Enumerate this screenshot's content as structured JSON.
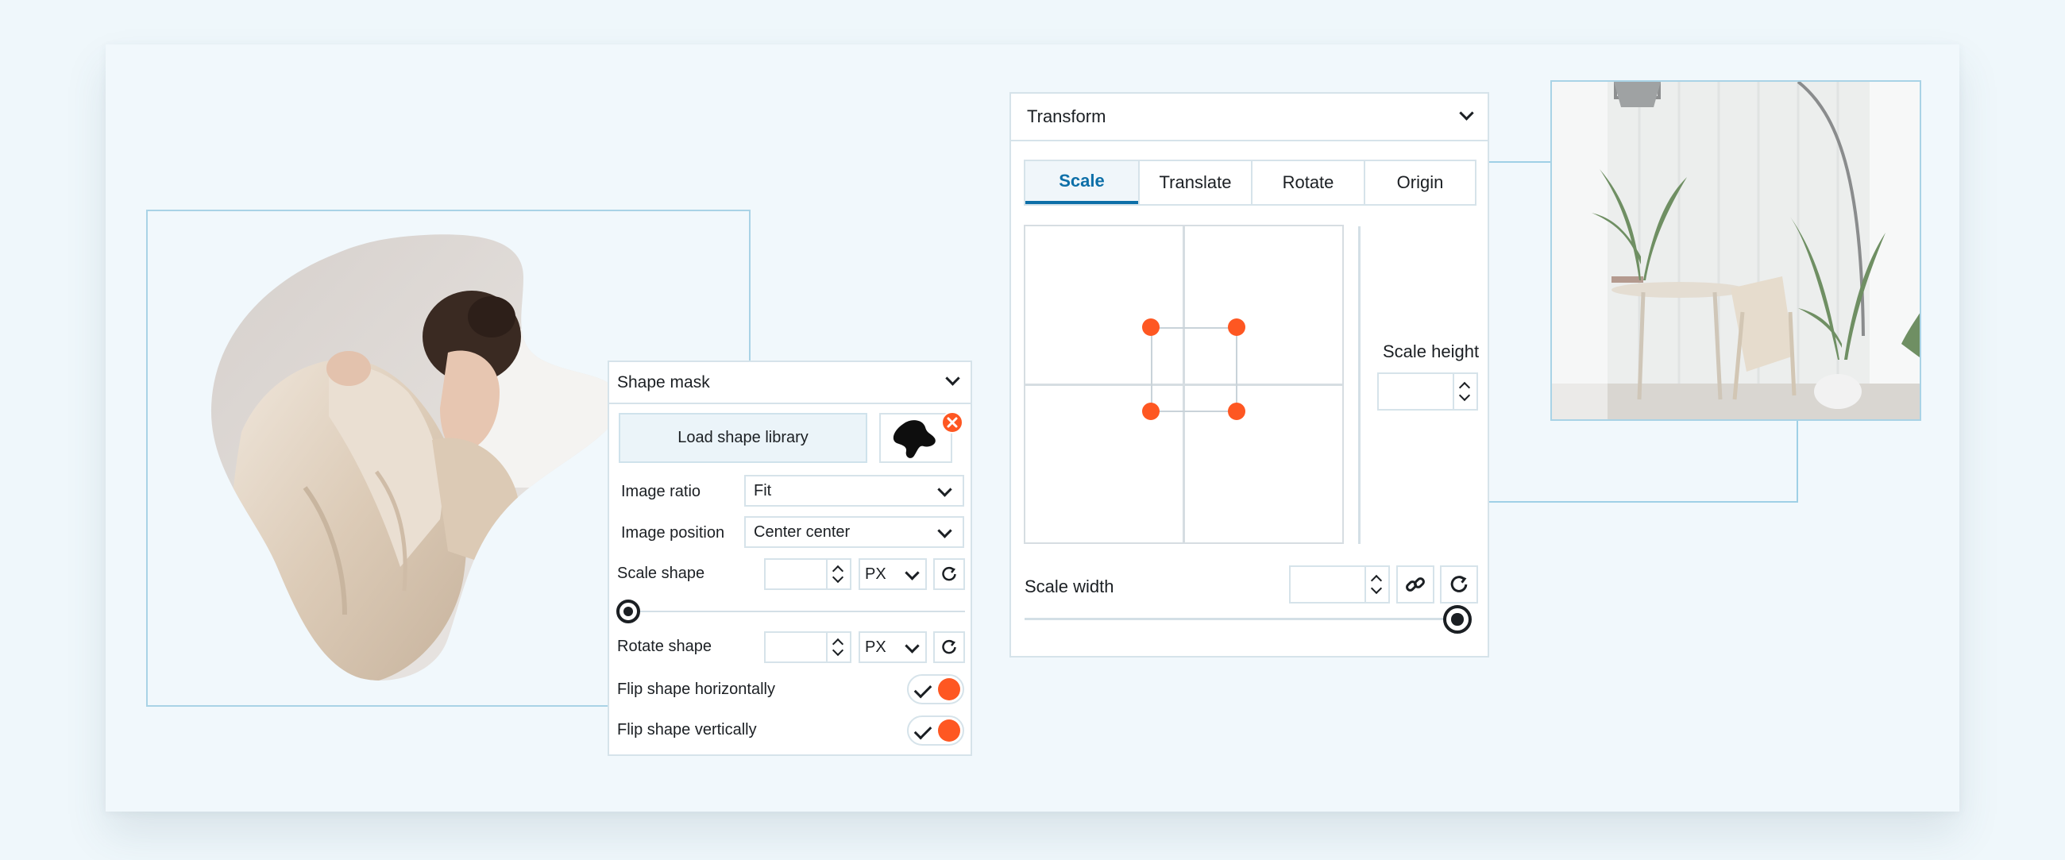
{
  "shape_mask": {
    "title": "Shape mask",
    "load_library_label": "Load shape library",
    "image_ratio": {
      "label": "Image ratio",
      "value": "Fit"
    },
    "image_position": {
      "label": "Image position",
      "value": "Center center"
    },
    "scale_shape": {
      "label": "Scale shape",
      "value": "",
      "unit": "PX",
      "slider_fraction": 0
    },
    "rotate_shape": {
      "label": "Rotate shape",
      "value": "",
      "unit": "PX"
    },
    "flip_horizontal": {
      "label": "Flip shape horizontally",
      "on": true
    },
    "flip_vertical": {
      "label": "Flip shape vertically",
      "on": true
    }
  },
  "transform": {
    "title": "Transform",
    "tabs": [
      "Scale",
      "Translate",
      "Rotate",
      "Origin"
    ],
    "active_tab": "Scale",
    "scale_height": {
      "label": "Scale height",
      "value": ""
    },
    "scale_width": {
      "label": "Scale width",
      "value": "",
      "slider_fraction": 1
    }
  },
  "icons": {
    "remove": "close-icon",
    "shape_preview": "blob-shape-icon",
    "reset": "reset-icon",
    "link": "link-icon",
    "dropdown": "chevron-down-icon"
  },
  "colors": {
    "accent": "#fe5722",
    "active_tab": "#0d6fa8",
    "frame": "#a9d3e6",
    "background": "#eff7fb"
  }
}
